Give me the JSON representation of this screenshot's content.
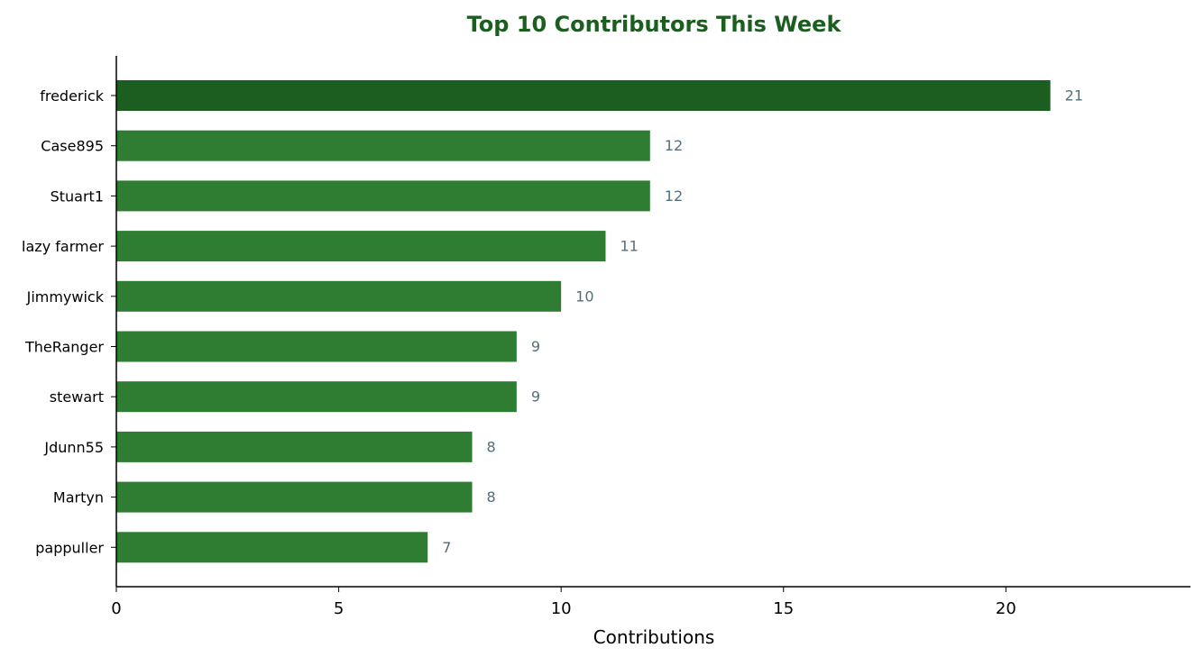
{
  "chart_data": {
    "type": "bar",
    "orientation": "horizontal",
    "title": "Top 10 Contributors This Week",
    "xlabel": "Contributions",
    "ylabel": "",
    "categories": [
      "frederick",
      "Case895",
      "Stuart1",
      "lazy farmer",
      "Jimmywick",
      "TheRanger",
      "stewart",
      "Jdunn55",
      "Martyn",
      "pappuller"
    ],
    "values": [
      21,
      12,
      12,
      11,
      10,
      9,
      9,
      8,
      8,
      7
    ],
    "xlim": [
      0,
      24.15
    ],
    "xticks": [
      0,
      5,
      10,
      15,
      20
    ],
    "grid": false,
    "legend": "none",
    "colors": {
      "title": "#1b5e20",
      "top_bar": "#1b5e20",
      "bar": "#2e7d32",
      "value_label": "#546e7a",
      "axis": "#000000",
      "text": "#000000"
    }
  }
}
